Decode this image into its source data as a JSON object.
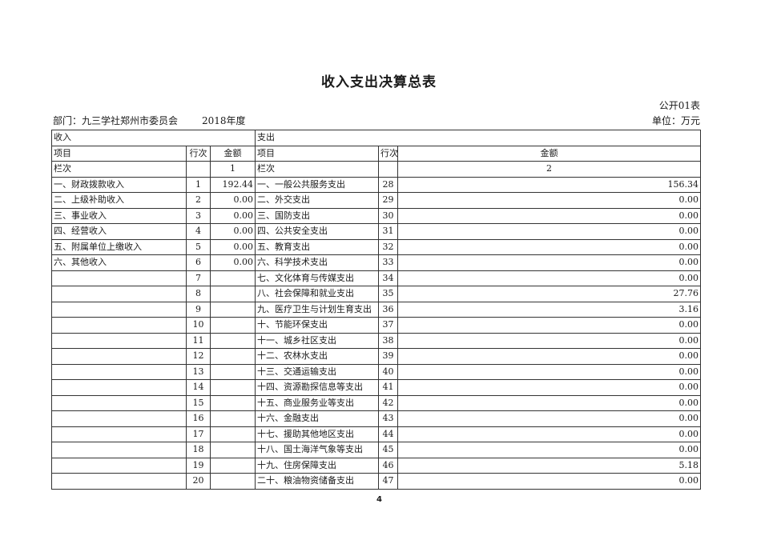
{
  "title": "收入支出决算总表",
  "form_no": "公开01表",
  "department": "部门：九三学社郑州市委员会",
  "year": "2018年度",
  "unit": "单位：万元",
  "headers": {
    "income": "收入",
    "expense": "支出",
    "item": "项目",
    "row_no": "行次",
    "amount": "金额",
    "column_label": "栏次",
    "col1": "1",
    "col2": "2"
  },
  "rows": [
    {
      "in_item": "一、财政拨款收入",
      "in_no": "1",
      "in_amt": "192.44",
      "ex_item": "一、一般公共服务支出",
      "ex_no": "28",
      "ex_amt": "156.34"
    },
    {
      "in_item": "二、上级补助收入",
      "in_no": "2",
      "in_amt": "0.00",
      "ex_item": "二、外交支出",
      "ex_no": "29",
      "ex_amt": "0.00"
    },
    {
      "in_item": "三、事业收入",
      "in_no": "3",
      "in_amt": "0.00",
      "ex_item": "三、国防支出",
      "ex_no": "30",
      "ex_amt": "0.00"
    },
    {
      "in_item": "四、经营收入",
      "in_no": "4",
      "in_amt": "0.00",
      "ex_item": "四、公共安全支出",
      "ex_no": "31",
      "ex_amt": "0.00"
    },
    {
      "in_item": "五、附属单位上缴收入",
      "in_no": "5",
      "in_amt": "0.00",
      "ex_item": "五、教育支出",
      "ex_no": "32",
      "ex_amt": "0.00"
    },
    {
      "in_item": "六、其他收入",
      "in_no": "6",
      "in_amt": "0.00",
      "ex_item": "六、科学技术支出",
      "ex_no": "33",
      "ex_amt": "0.00"
    },
    {
      "in_item": "",
      "in_no": "7",
      "in_amt": "",
      "ex_item": "七、文化体育与传媒支出",
      "ex_no": "34",
      "ex_amt": "0.00"
    },
    {
      "in_item": "",
      "in_no": "8",
      "in_amt": "",
      "ex_item": "八、社会保障和就业支出",
      "ex_no": "35",
      "ex_amt": "27.76"
    },
    {
      "in_item": "",
      "in_no": "9",
      "in_amt": "",
      "ex_item": "九、医疗卫生与计划生育支出",
      "ex_no": "36",
      "ex_amt": "3.16"
    },
    {
      "in_item": "",
      "in_no": "10",
      "in_amt": "",
      "ex_item": "十、节能环保支出",
      "ex_no": "37",
      "ex_amt": "0.00"
    },
    {
      "in_item": "",
      "in_no": "11",
      "in_amt": "",
      "ex_item": "十一、城乡社区支出",
      "ex_no": "38",
      "ex_amt": "0.00"
    },
    {
      "in_item": "",
      "in_no": "12",
      "in_amt": "",
      "ex_item": "十二、农林水支出",
      "ex_no": "39",
      "ex_amt": "0.00"
    },
    {
      "in_item": "",
      "in_no": "13",
      "in_amt": "",
      "ex_item": "十三、交通运输支出",
      "ex_no": "40",
      "ex_amt": "0.00"
    },
    {
      "in_item": "",
      "in_no": "14",
      "in_amt": "",
      "ex_item": "十四、资源勘探信息等支出",
      "ex_no": "41",
      "ex_amt": "0.00"
    },
    {
      "in_item": "",
      "in_no": "15",
      "in_amt": "",
      "ex_item": "十五、商业服务业等支出",
      "ex_no": "42",
      "ex_amt": "0.00"
    },
    {
      "in_item": "",
      "in_no": "16",
      "in_amt": "",
      "ex_item": "十六、金融支出",
      "ex_no": "43",
      "ex_amt": "0.00"
    },
    {
      "in_item": "",
      "in_no": "17",
      "in_amt": "",
      "ex_item": "十七、援助其他地区支出",
      "ex_no": "44",
      "ex_amt": "0.00"
    },
    {
      "in_item": "",
      "in_no": "18",
      "in_amt": "",
      "ex_item": "十八、国土海洋气象等支出",
      "ex_no": "45",
      "ex_amt": "0.00"
    },
    {
      "in_item": "",
      "in_no": "19",
      "in_amt": "",
      "ex_item": "十九、住房保障支出",
      "ex_no": "46",
      "ex_amt": "5.18"
    },
    {
      "in_item": "",
      "in_no": "20",
      "in_amt": "",
      "ex_item": "二十、粮油物资储备支出",
      "ex_no": "47",
      "ex_amt": "0.00"
    }
  ],
  "page_number": "4"
}
